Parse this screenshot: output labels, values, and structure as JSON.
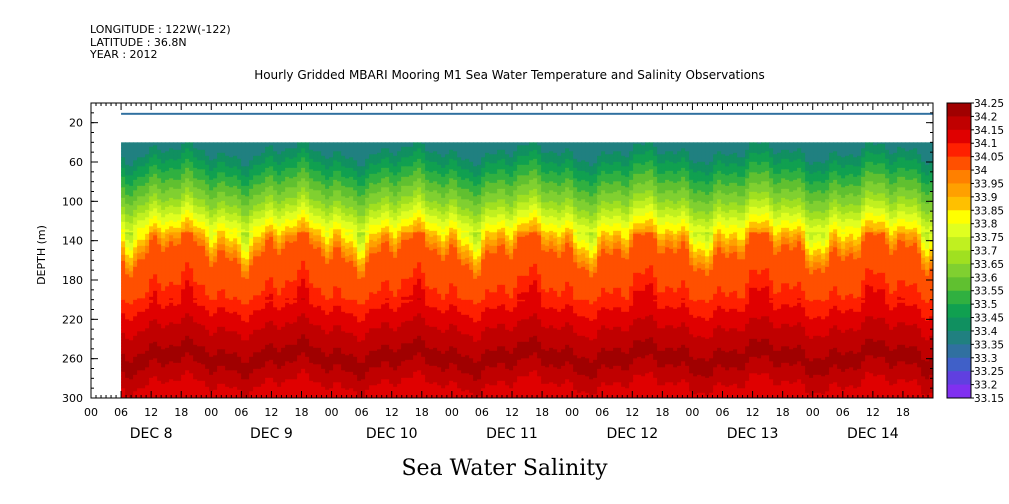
{
  "header": {
    "longitude": "LONGITUDE : 122W(-122)",
    "latitude": "LATITUDE : 36.8N",
    "year": "YEAR : 2012"
  },
  "chart_data": {
    "type": "heatmap",
    "title": "Hourly Gridded MBARI Mooring M1 Sea Water Temperature and Salinity Observations",
    "footer_label": "Sea Water Salinity",
    "ylabel": "DEPTH (m)",
    "xlabel": "",
    "y_range": [
      0,
      300
    ],
    "y_inverted": true,
    "y_ticks": [
      20,
      60,
      100,
      140,
      180,
      220,
      260,
      300
    ],
    "x_range_hours": [
      0,
      168
    ],
    "data_start_hour": 6,
    "x_hour_ticks": [
      "00",
      "06",
      "12",
      "18",
      "00",
      "06",
      "12",
      "18",
      "00",
      "06",
      "12",
      "18",
      "00",
      "06",
      "12",
      "18",
      "00",
      "06",
      "12",
      "18",
      "00",
      "06",
      "12",
      "18",
      "00",
      "06",
      "12",
      "18"
    ],
    "x_day_labels": [
      "DEC  8",
      "DEC  9",
      "DEC 10",
      "DEC 11",
      "DEC 12",
      "DEC 13",
      "DEC 14"
    ],
    "surface_band": {
      "depth_range": [
        10,
        12
      ],
      "value": 33.3
    },
    "colorbar": {
      "levels": [
        "34.25",
        "34.2",
        "34.15",
        "34.1",
        "34.05",
        "34",
        "33.95",
        "33.9",
        "33.85",
        "33.8",
        "33.75",
        "33.7",
        "33.65",
        "33.6",
        "33.55",
        "33.5",
        "33.45",
        "33.4",
        "33.35",
        "33.3",
        "33.25",
        "33.2",
        "33.15"
      ],
      "colors": [
        "#a00000",
        "#c00000",
        "#e00000",
        "#ff2000",
        "#ff5000",
        "#ff8000",
        "#ffa000",
        "#ffc000",
        "#ffff00",
        "#e0ff20",
        "#c0f020",
        "#a0e020",
        "#80d030",
        "#60c030",
        "#30b040",
        "#10a050",
        "#109060",
        "#208080",
        "#3070a0",
        "#4060c8",
        "#6040e0",
        "#8030f0",
        "#c000ff"
      ]
    },
    "profile": [
      {
        "depth": 40,
        "value": 33.35
      },
      {
        "depth": 70,
        "value": 33.5
      },
      {
        "depth": 100,
        "value": 33.65
      },
      {
        "depth": 130,
        "value": 33.85
      },
      {
        "depth": 150,
        "value": 34.0
      },
      {
        "depth": 190,
        "value": 34.05
      },
      {
        "depth": 215,
        "value": 34.12
      },
      {
        "depth": 240,
        "value": 34.18
      },
      {
        "depth": 260,
        "value": 34.22
      },
      {
        "depth": 285,
        "value": 34.15
      },
      {
        "depth": 300,
        "value": 34.12
      }
    ]
  }
}
